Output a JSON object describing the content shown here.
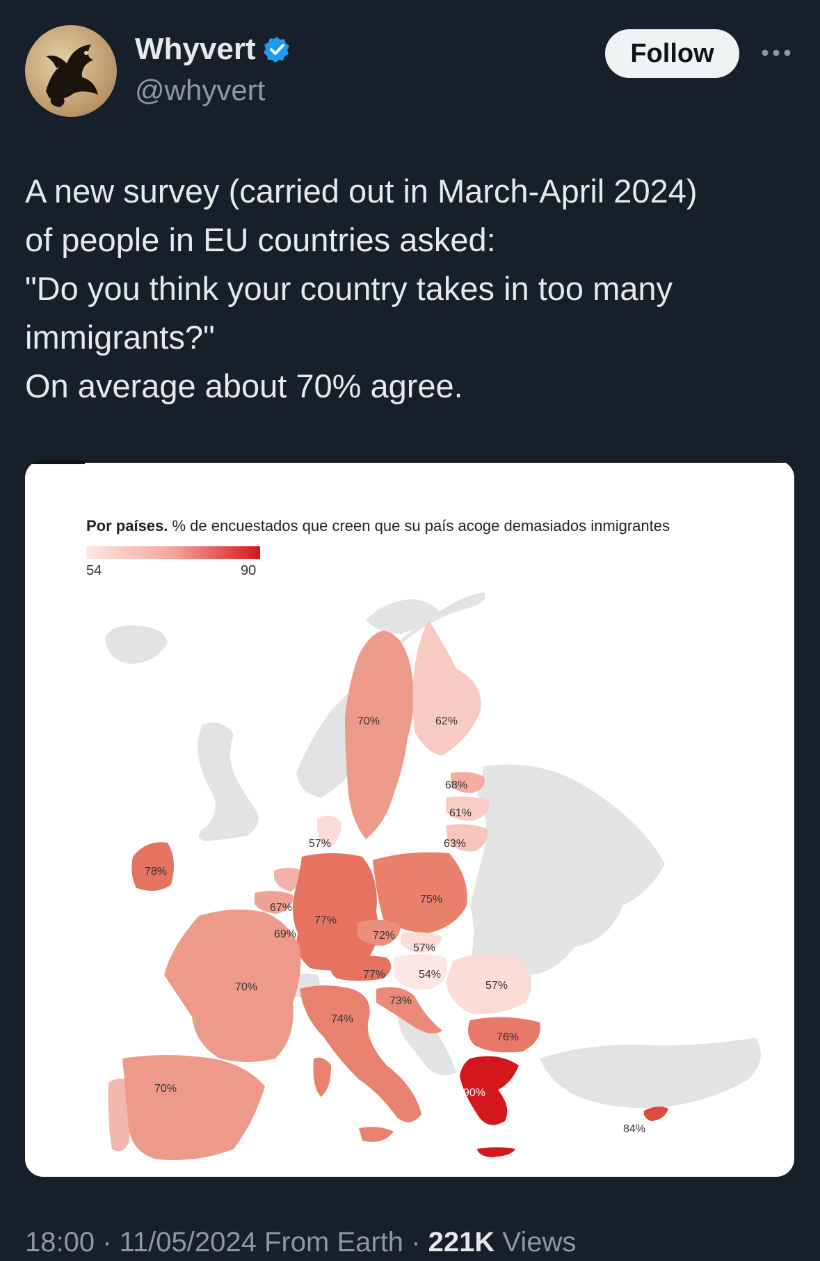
{
  "author": {
    "name": "Whyvert",
    "handle": "@whyvert",
    "verified": true,
    "avatar_icon": "dragon-illustration-icon"
  },
  "actions": {
    "follow_label": "Follow",
    "more_icon": "more-dots-icon"
  },
  "tweet": {
    "lines": [
      "A new survey (carried out in March-April 2024)",
      "of people in EU countries asked:",
      "\"Do you think your country takes in too many",
      "immigrants?\"",
      "On average about 70% agree."
    ]
  },
  "map_card": {
    "title_bold": "Por países.",
    "title_rest": " % de encuestados que creen que su país acoge demasiados inmigrantes",
    "legend_min": "54",
    "legend_max": "90",
    "labels": {
      "sweden": "70%",
      "finland": "62%",
      "estonia": "68%",
      "latvia": "61%",
      "lithuania": "63%",
      "denmark": "57%",
      "ireland": "78%",
      "netherlands": "67%",
      "belgium": "69%",
      "germany": "77%",
      "poland": "75%",
      "czechia": "72%",
      "slovakia": "57%",
      "austria": "77%",
      "hungary": "54%",
      "romania": "57%",
      "france": "70%",
      "slovenia_croatia": "73%",
      "italy": "74%",
      "bulgaria": "76%",
      "spain": "70%",
      "greece": "90%",
      "cyprus": "84%"
    },
    "colors": {
      "non_eu": "#e3e3e3",
      "scale_low": "#fde7e4",
      "scale_high": "#d4171c"
    }
  },
  "footer": {
    "time": "18:00",
    "date": "11/05/2024",
    "source": "From Earth",
    "views_count": "221K",
    "views_label": "Views"
  }
}
